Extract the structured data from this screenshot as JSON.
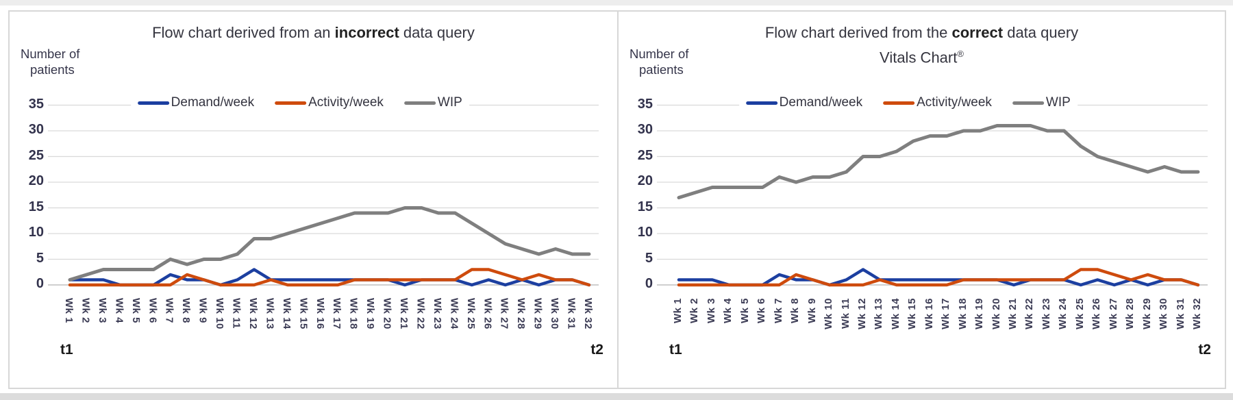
{
  "page": {
    "background": "#ffffff",
    "frame_border_color": "#d7d7d7",
    "bottom_strip_color": "#dcdcdc"
  },
  "chart_data": [
    {
      "type": "line",
      "title_prefix": "Flow chart derived from an ",
      "title_bold": "incorrect",
      "title_suffix": " data query",
      "subtitle": "",
      "subtitle_sup": "",
      "ylabel_lines": [
        "Number of",
        "patients"
      ],
      "yticks": [
        35,
        30,
        25,
        20,
        15,
        10,
        5,
        0
      ],
      "ylim": [
        0,
        35
      ],
      "grid": "horizontal",
      "gridline_color": "#d9d9d9",
      "zeroline_color": "#bfbfbf",
      "legend_position": "top",
      "xlabel_rotation": "down",
      "x_start_label": "t1",
      "x_end_label": "t2",
      "categories": [
        "Wk 1",
        "Wk 2",
        "Wk 3",
        "Wk 4",
        "Wk 5",
        "Wk 6",
        "Wk 7",
        "Wk 8",
        "Wk 9",
        "Wk 10",
        "Wk 11",
        "Wk 12",
        "Wk 13",
        "Wk 14",
        "Wk 15",
        "Wk 16",
        "Wk 17",
        "Wk 18",
        "Wk 19",
        "Wk 20",
        "Wk 21",
        "Wk 22",
        "Wk 23",
        "Wk 24",
        "Wk 25",
        "Wk 26",
        "Wk 27",
        "Wk 28",
        "Wk 29",
        "Wk 30",
        "Wk 31",
        "Wk 32"
      ],
      "series": [
        {
          "name": "Demand/week",
          "color": "#1c3fa0",
          "values": [
            1,
            1,
            1,
            0,
            0,
            0,
            2,
            1,
            1,
            0,
            1,
            3,
            1,
            1,
            1,
            1,
            1,
            1,
            1,
            1,
            0,
            1,
            1,
            1,
            0,
            1,
            0,
            1,
            0,
            1,
            1,
            0
          ]
        },
        {
          "name": "Activity/week",
          "color": "#ce4b0d",
          "values": [
            0,
            0,
            0,
            0,
            0,
            0,
            0,
            2,
            1,
            0,
            0,
            0,
            1,
            0,
            0,
            0,
            0,
            1,
            1,
            1,
            1,
            1,
            1,
            1,
            3,
            3,
            2,
            1,
            2,
            1,
            1,
            0
          ]
        },
        {
          "name": "WIP",
          "color": "#7f7f7f",
          "values": [
            1,
            2,
            3,
            3,
            3,
            3,
            5,
            4,
            5,
            5,
            6,
            9,
            9,
            10,
            11,
            12,
            13,
            14,
            14,
            14,
            15,
            15,
            14,
            14,
            12,
            10,
            8,
            7,
            6,
            7,
            6,
            6
          ]
        }
      ]
    },
    {
      "type": "line",
      "title_prefix": "Flow chart derived from the ",
      "title_bold": "correct",
      "title_suffix": " data query",
      "subtitle": "Vitals Chart",
      "subtitle_sup": "®",
      "ylabel_lines": [
        "Number of",
        "patients"
      ],
      "yticks": [
        35,
        30,
        25,
        20,
        15,
        10,
        5,
        0
      ],
      "ylim": [
        0,
        35
      ],
      "grid": "horizontal",
      "gridline_color": "#d9d9d9",
      "zeroline_color": "#bfbfbf",
      "legend_position": "top",
      "xlabel_rotation": "up",
      "x_start_label": "t1",
      "x_end_label": "t2",
      "categories": [
        "Wk 1",
        "Wk 2",
        "Wk 3",
        "Wk 4",
        "Wk 5",
        "Wk 6",
        "Wk 7",
        "Wk 8",
        "Wk 9",
        "Wk 10",
        "Wk 11",
        "Wk 12",
        "Wk 13",
        "Wk 14",
        "Wk 15",
        "Wk 16",
        "Wk 17",
        "Wk 18",
        "Wk 19",
        "Wk 20",
        "Wk 21",
        "Wk 22",
        "Wk 23",
        "Wk 24",
        "Wk 25",
        "Wk 26",
        "Wk 27",
        "Wk 28",
        "Wk 29",
        "Wk 30",
        "Wk 31",
        "Wk 32"
      ],
      "series": [
        {
          "name": "Demand/week",
          "color": "#1c3fa0",
          "values": [
            1,
            1,
            1,
            0,
            0,
            0,
            2,
            1,
            1,
            0,
            1,
            3,
            1,
            1,
            1,
            1,
            1,
            1,
            1,
            1,
            0,
            1,
            1,
            1,
            0,
            1,
            0,
            1,
            0,
            1,
            1,
            0
          ]
        },
        {
          "name": "Activity/week",
          "color": "#ce4b0d",
          "values": [
            0,
            0,
            0,
            0,
            0,
            0,
            0,
            2,
            1,
            0,
            0,
            0,
            1,
            0,
            0,
            0,
            0,
            1,
            1,
            1,
            1,
            1,
            1,
            1,
            3,
            3,
            2,
            1,
            2,
            1,
            1,
            0
          ]
        },
        {
          "name": "WIP",
          "color": "#7f7f7f",
          "values": [
            17,
            18,
            19,
            19,
            19,
            19,
            21,
            20,
            21,
            21,
            22,
            25,
            25,
            26,
            28,
            29,
            29,
            30,
            30,
            31,
            31,
            31,
            30,
            30,
            27,
            25,
            24,
            23,
            22,
            23,
            22,
            22
          ]
        }
      ]
    }
  ]
}
